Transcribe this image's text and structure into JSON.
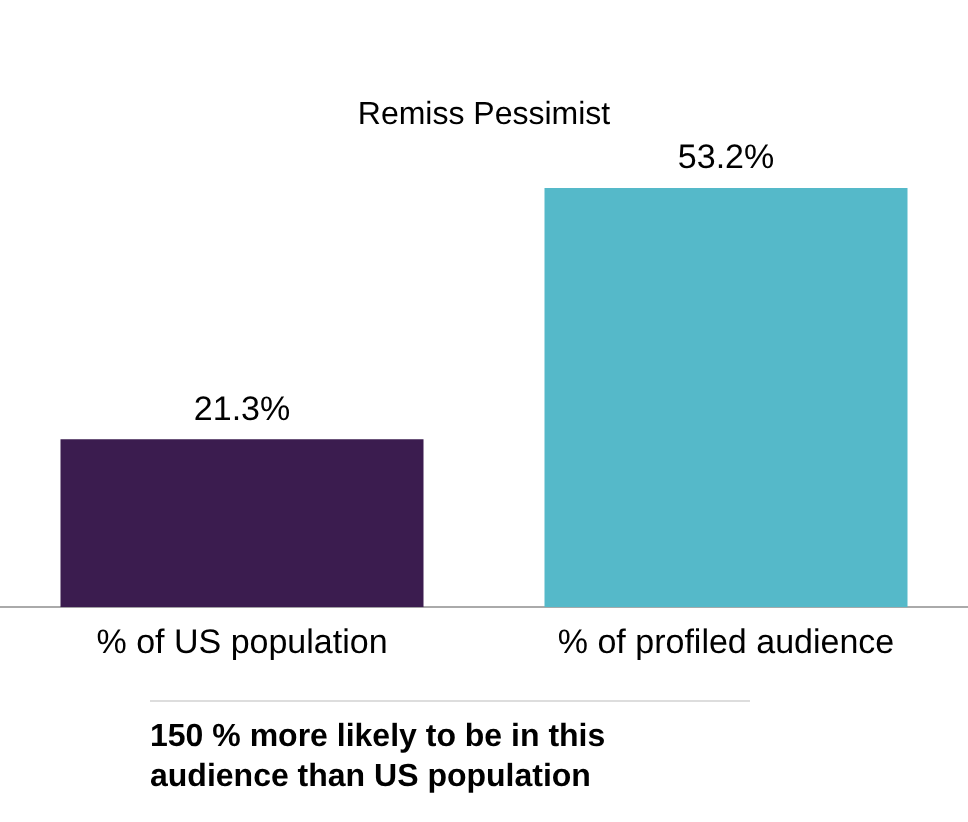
{
  "chart_data": {
    "type": "bar",
    "title": "Remiss Pessimist",
    "categories": [
      "% of US population",
      "% of profiled audience"
    ],
    "values": [
      21.3,
      53.2
    ],
    "colors": [
      "#3b1c4f",
      "#55b9c9"
    ],
    "value_labels": [
      "21.3%",
      "53.2%"
    ],
    "annotations": [
      "150 % more likely to be in this audience than US population"
    ],
    "grid": false,
    "legend": false
  }
}
